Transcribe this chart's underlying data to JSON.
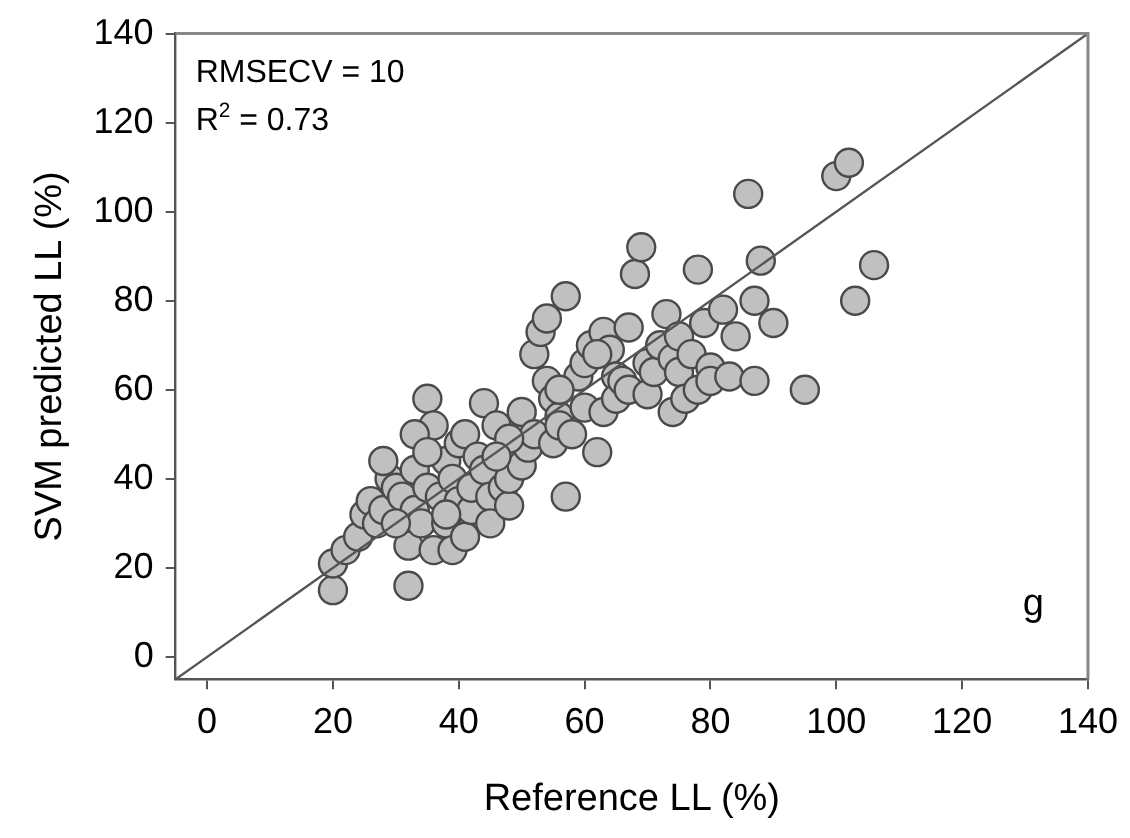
{
  "chart_data": {
    "type": "scatter",
    "xlabel": "Reference LL (%)",
    "ylabel": "SVM predicted LL (%)",
    "xlim": [
      -5,
      140
    ],
    "ylim": [
      -5,
      140
    ],
    "xticks": [
      0,
      20,
      40,
      60,
      80,
      100,
      120,
      140
    ],
    "yticks": [
      0,
      20,
      40,
      60,
      80,
      100,
      120,
      140
    ],
    "grid": false,
    "legend": false,
    "marker": "circle",
    "annotations": [
      "RMSECV = 10",
      "R$^{2}$ = 0.73",
      "g"
    ],
    "series": [
      {
        "color": "#c0c0c0",
        "x": [
          20,
          20,
          22,
          24,
          25,
          26,
          27,
          28,
          29,
          30,
          31,
          32,
          32,
          33,
          33,
          34,
          35,
          35,
          36,
          36,
          37,
          38,
          38,
          39,
          39,
          40,
          40,
          41,
          41,
          42,
          42,
          43,
          44,
          44,
          45,
          45,
          46,
          47,
          48,
          48,
          50,
          50,
          51,
          52,
          52,
          53,
          54,
          54,
          55,
          55,
          56,
          56,
          57,
          57,
          59,
          60,
          60,
          61,
          62,
          63,
          63,
          64,
          65,
          65,
          66,
          67,
          67,
          68,
          69,
          70,
          70,
          71,
          72,
          73,
          74,
          74,
          75,
          75,
          76,
          77,
          78,
          78,
          79,
          80,
          80,
          82,
          83,
          84,
          86,
          87,
          87,
          88,
          90,
          95,
          100,
          102,
          103,
          106,
          56,
          58,
          62,
          48,
          46,
          38,
          30,
          28,
          33,
          35
        ],
        "values": [
          15,
          21,
          24,
          27,
          32,
          35,
          30,
          33,
          40,
          38,
          36,
          25,
          16,
          33,
          42,
          30,
          38,
          58,
          52,
          24,
          36,
          30,
          44,
          40,
          24,
          35,
          48,
          27,
          50,
          33,
          38,
          45,
          57,
          42,
          36,
          30,
          52,
          38,
          34,
          40,
          43,
          55,
          47,
          50,
          68,
          73,
          62,
          76,
          58,
          48,
          54,
          52,
          81,
          36,
          63,
          66,
          56,
          70,
          46,
          55,
          73,
          69,
          63,
          58,
          62,
          60,
          74,
          86,
          92,
          66,
          59,
          64,
          70,
          77,
          55,
          67,
          72,
          64,
          58,
          68,
          60,
          87,
          75,
          65,
          62,
          78,
          63,
          72,
          104,
          62,
          80,
          89,
          75,
          60,
          108,
          111,
          80,
          88,
          60,
          50,
          68,
          49,
          45,
          32,
          30,
          44,
          50,
          46
        ]
      },
      {
        "type": "line",
        "color": "#555555",
        "marker": "none",
        "x": [
          -5,
          140
        ],
        "values": [
          -5,
          140
        ]
      }
    ]
  }
}
